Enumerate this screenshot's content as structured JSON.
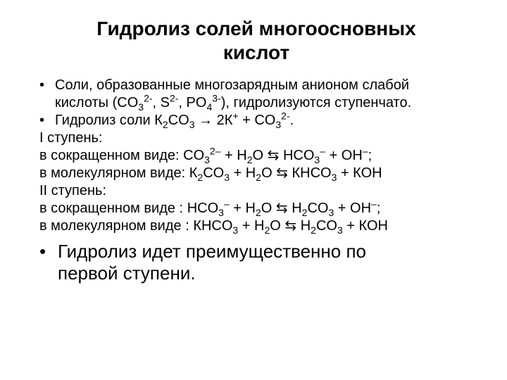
{
  "title_line1": "Гидролиз солей многоосновных",
  "title_line2": "кислот",
  "bullets": {
    "b1_l1": "Соли, образованные многозарядным анионом слабой",
    "b1_l2_prefix": "кислоты (CO",
    "b1_l2_mid1": ", S",
    "b1_l2_mid2": ", PO",
    "b1_l2_suffix": "), гидролизуются ступенчато.",
    "b2_prefix": "Гидролиз соли К",
    "b2_mid1": "CO",
    "b2_arrow": " → 2К",
    "b2_mid2": " + CO",
    "b2_end": "."
  },
  "lines": {
    "step1_label": "I ступень:",
    "ionic_label": "в сокращенном виде",
    "molecular_label": "в молекулярном виде",
    "step2_label": "II ступень:",
    "s1_ionic_l": "CO",
    "s1_ionic_mid": " + H",
    "s1_ionic_eq": "O ⇆ HCO",
    "s1_ionic_r": " + OH",
    "s1_mol_l": "К",
    "s1_mol_l2": "CO",
    "s1_mol_mid": " + H",
    "s1_mol_eq": "O ⇆ КНCO",
    "s1_mol_r": " + КОН",
    "s2_ionic_l": "HCO",
    "s2_ionic_mid": " + H",
    "s2_ionic_eq": "O ⇆ H",
    "s2_ionic_r1": "CO",
    "s2_ionic_r2": " + OH",
    "s2_mol_l": "КНCO",
    "s2_mol_mid": " + H",
    "s2_mol_eq": "O ⇆ H",
    "s2_mol_r1": "CO",
    "s2_mol_r2": " + КОН"
  },
  "conclusion_l1": "Гидролиз идет преимущественно по",
  "conclusion_l2": "первой ступени.",
  "subs": {
    "two": "2",
    "three": "3",
    "four": "4"
  },
  "sups": {
    "plus": "+",
    "minus": "–",
    "twominus": "2-",
    "twominus_alt": "2–",
    "threeminus": "3-"
  },
  "punct": {
    "colon": ":",
    "colon_sp": " :",
    "semicolon": ";",
    "spaces": "    "
  }
}
